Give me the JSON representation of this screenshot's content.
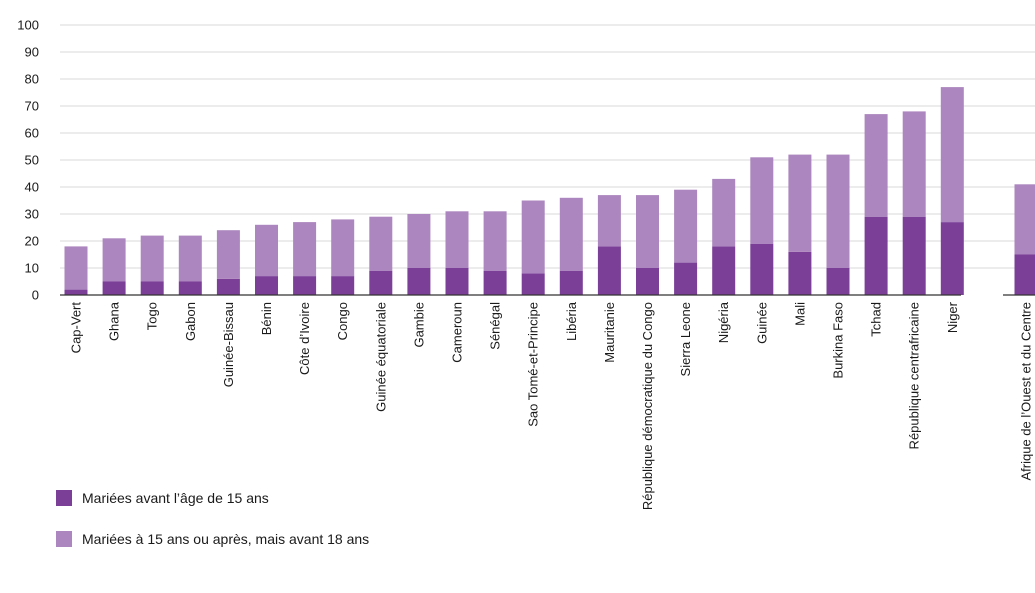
{
  "chart_data": {
    "type": "bar",
    "stacked": true,
    "categories": [
      "Cap-Vert",
      "Ghana",
      "Togo",
      "Gabon",
      "Guinée-Bissau",
      "Bénin",
      "Côte d’Ivoire",
      "Congo",
      "Guinée équatoriale",
      "Gambie",
      "Cameroun",
      "Sénégal",
      "Sao Tomé-et-Principe",
      "Libéria",
      "Mauritanie",
      "République démocratique du Congo",
      "Sierra Leone",
      "Nigéria",
      "Guinée",
      "Mali",
      "Burkina Faso",
      "Tchad",
      "République centrafricaine",
      "Niger",
      "Afrique de l’Ouest et du Centre"
    ],
    "series": [
      {
        "name": "Mariées avant l’âge de 15 ans",
        "color": "#7b3f98",
        "values": [
          2,
          5,
          5,
          5,
          6,
          7,
          7,
          7,
          9,
          10,
          10,
          9,
          8,
          9,
          18,
          10,
          12,
          18,
          19,
          16,
          10,
          29,
          29,
          27,
          15
        ]
      },
      {
        "name": "Mariées à 15 ans ou après, mais avant 18 ans",
        "color": "#ac86be",
        "values": [
          16,
          16,
          17,
          17,
          18,
          19,
          20,
          21,
          20,
          20,
          21,
          22,
          27,
          27,
          19,
          27,
          27,
          25,
          32,
          36,
          42,
          38,
          39,
          50,
          26
        ]
      }
    ],
    "yticks": [
      "0",
      "10",
      "20",
      "30",
      "40",
      "50",
      "60",
      "70",
      "80",
      "90",
      "100"
    ],
    "ylim": [
      0,
      100
    ],
    "grid": true,
    "legend_position": "bottom-left",
    "title": "",
    "xlabel": "",
    "ylabel": ""
  }
}
